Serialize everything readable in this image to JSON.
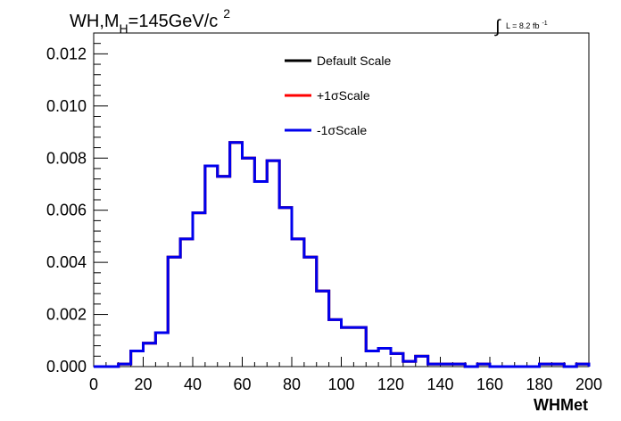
{
  "title": {
    "prefix": "WH,M",
    "subscript": "H",
    "suffix": "=145GeV/c",
    "superscript": "2"
  },
  "luminosity": {
    "integral_symbol": "∫",
    "text": "L = 8.2 fb",
    "superscript": "-1"
  },
  "chart_data": {
    "type": "histogram",
    "xlabel": "WHMet",
    "ylabel": "",
    "xlim": [
      0,
      200
    ],
    "ylim": [
      0,
      0.0128
    ],
    "bin_width": 5,
    "x_ticks": [
      0,
      20,
      40,
      60,
      80,
      100,
      120,
      140,
      160,
      180,
      200
    ],
    "x_tick_labels": [
      "0",
      "20",
      "40",
      "60",
      "80",
      "100",
      "120",
      "140",
      "160",
      "180",
      "200"
    ],
    "y_ticks": [
      0,
      0.002,
      0.004,
      0.006,
      0.008,
      0.01,
      0.012
    ],
    "y_tick_labels": [
      "0.000",
      "0.002",
      "0.004",
      "0.006",
      "0.008",
      "0.010",
      "0.012"
    ],
    "bin_edges": [
      0,
      5,
      10,
      15,
      20,
      25,
      30,
      35,
      40,
      45,
      50,
      55,
      60,
      65,
      70,
      75,
      80,
      85,
      90,
      95,
      100,
      105,
      110,
      115,
      120,
      125,
      130,
      135,
      140,
      145,
      150,
      155,
      160,
      165,
      170,
      175,
      180,
      185,
      190,
      195,
      200
    ],
    "legend_position": "top-center",
    "series": [
      {
        "name": "Default Scale",
        "color": "#000000",
        "values": [
          0.0,
          0.0,
          0.0001,
          0.0006,
          0.0009,
          0.0013,
          0.0042,
          0.0049,
          0.0059,
          0.0077,
          0.0073,
          0.0086,
          0.008,
          0.0071,
          0.0079,
          0.0061,
          0.0049,
          0.0042,
          0.0029,
          0.0018,
          0.0015,
          0.0015,
          0.0006,
          0.0007,
          0.0005,
          0.0002,
          0.0004,
          0.0001,
          0.0001,
          0.0001,
          0.0,
          0.0001,
          0.0,
          0.0,
          0.0,
          0.0,
          0.0001,
          0.0001,
          0.0,
          0.0001
        ]
      },
      {
        "name": "+1σScale",
        "color": "#ff0000",
        "values": [
          0.0,
          0.0,
          0.0001,
          0.0006,
          0.0009,
          0.0013,
          0.0042,
          0.0049,
          0.0059,
          0.0077,
          0.0073,
          0.0086,
          0.008,
          0.0071,
          0.0079,
          0.0061,
          0.0049,
          0.0042,
          0.0029,
          0.0018,
          0.0015,
          0.0015,
          0.0006,
          0.0007,
          0.0005,
          0.0002,
          0.0004,
          0.0001,
          0.0001,
          0.0001,
          0.0,
          0.0001,
          0.0,
          0.0,
          0.0,
          0.0,
          0.0001,
          0.0001,
          0.0,
          0.0001
        ]
      },
      {
        "name": "-1σScale",
        "color": "#0000ee",
        "values": [
          0.0,
          0.0,
          0.0001,
          0.0006,
          0.0009,
          0.0013,
          0.0042,
          0.0049,
          0.0059,
          0.0077,
          0.0073,
          0.0086,
          0.008,
          0.0071,
          0.0079,
          0.0061,
          0.0049,
          0.0042,
          0.0029,
          0.0018,
          0.0015,
          0.0015,
          0.0006,
          0.0007,
          0.0005,
          0.0002,
          0.0004,
          0.0001,
          0.0001,
          0.0001,
          0.0,
          0.0001,
          0.0,
          0.0,
          0.0,
          0.0,
          0.0001,
          0.0001,
          0.0,
          0.0001
        ]
      }
    ]
  }
}
